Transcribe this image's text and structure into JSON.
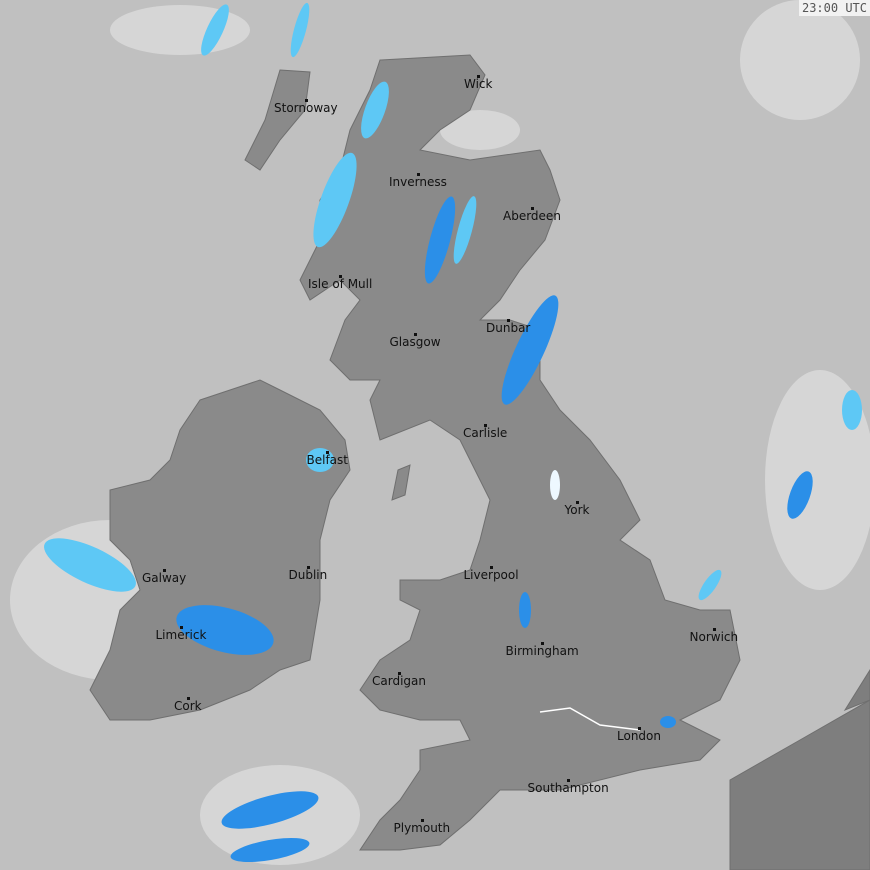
{
  "timestamp": "23:00 UTC",
  "colors": {
    "sea": "#c0c0c0",
    "land": "#8a8a8a",
    "land_dark": "#7e7e7e",
    "rain_light": "#d8f0fc",
    "rain_medium": "#5ec8f5",
    "rain_heavy": "#2b8fe8",
    "cloud": "#d6d6d6"
  },
  "cities": [
    {
      "name": "Wick"
    },
    {
      "name": "Stornoway"
    },
    {
      "name": "Inverness"
    },
    {
      "name": "Aberdeen"
    },
    {
      "name": "Isle of Mull"
    },
    {
      "name": "Glasgow"
    },
    {
      "name": "Dunbar"
    },
    {
      "name": "Carlisle"
    },
    {
      "name": "Belfast"
    },
    {
      "name": "York"
    },
    {
      "name": "Galway"
    },
    {
      "name": "Dublin"
    },
    {
      "name": "Liverpool"
    },
    {
      "name": "Limerick"
    },
    {
      "name": "Norwich"
    },
    {
      "name": "Birmingham"
    },
    {
      "name": "Cardigan"
    },
    {
      "name": "Cork"
    },
    {
      "name": "London"
    },
    {
      "name": "Southampton"
    },
    {
      "name": "Plymouth"
    }
  ]
}
